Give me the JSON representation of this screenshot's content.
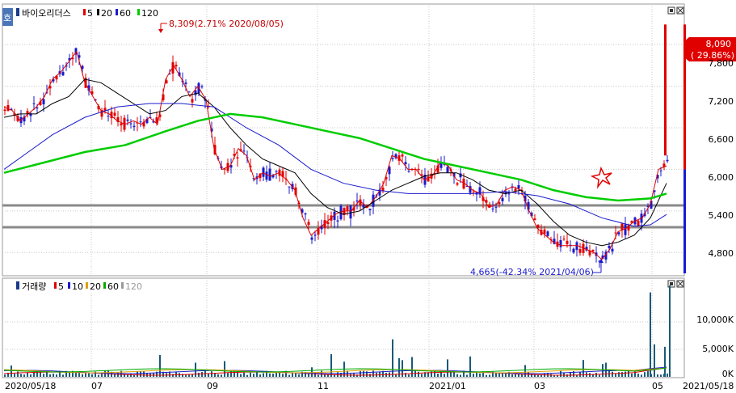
{
  "price_panel": {
    "legend": {
      "name": "바이오리더스",
      "ma_labels": [
        "5",
        "20",
        "60",
        "120"
      ],
      "ma_colors": [
        "#e00000",
        "#000000",
        "#1a1acc",
        "#00cc00"
      ]
    },
    "tab_label": "호",
    "annotations": {
      "high": "8,309(2.71% 2020/08/05)",
      "low": "4,665(-42.34% 2021/04/06)"
    },
    "current_price": {
      "price": "8,090",
      "change": "( 29.86%)"
    },
    "y_ticks": [
      "7,800",
      "7,200",
      "6,600",
      "6,000",
      "5,400",
      "4,800"
    ]
  },
  "volume_panel": {
    "legend": {
      "name": "거래량",
      "ma_labels": [
        "5",
        "10",
        "20",
        "60",
        "120"
      ],
      "ma_colors": [
        "#e00000",
        "#1a1acc",
        "#e0a000",
        "#00aa00",
        "#999999"
      ]
    },
    "y_ticks": [
      "10,000K",
      "5,000K",
      "0K"
    ]
  },
  "x_axis": {
    "labels": [
      "2020/05/18",
      "07",
      "09",
      "11",
      "2021/01",
      "03",
      "05",
      "2021/05/18"
    ]
  },
  "chart_data": {
    "type": "candlestick",
    "title": "바이오리더스",
    "price_range": [
      4500,
      8300
    ],
    "volume_range": [
      0,
      15000000
    ],
    "horizontal_lines": [
      5580,
      5240
    ],
    "last_close": 8090,
    "series": [
      {
        "name": "5",
        "points": [
          [
            0,
            6900
          ],
          [
            10,
            6850
          ],
          [
            20,
            6700
          ],
          [
            30,
            6800
          ],
          [
            40,
            6900
          ],
          [
            50,
            7050
          ],
          [
            60,
            7300
          ],
          [
            70,
            7400
          ],
          [
            80,
            7550
          ],
          [
            90,
            7700
          ],
          [
            100,
            7250
          ],
          [
            110,
            7050
          ],
          [
            120,
            6850
          ],
          [
            130,
            6800
          ],
          [
            140,
            6700
          ],
          [
            150,
            6650
          ],
          [
            160,
            6700
          ],
          [
            170,
            6650
          ],
          [
            180,
            6750
          ],
          [
            190,
            6650
          ],
          [
            200,
            7300
          ],
          [
            210,
            7500
          ],
          [
            220,
            7300
          ],
          [
            230,
            7050
          ],
          [
            240,
            7200
          ],
          [
            250,
            7000
          ],
          [
            260,
            6300
          ],
          [
            270,
            6000
          ],
          [
            280,
            6050
          ],
          [
            290,
            6300
          ],
          [
            300,
            6200
          ],
          [
            310,
            5850
          ],
          [
            320,
            5950
          ],
          [
            330,
            5900
          ],
          [
            340,
            5950
          ],
          [
            350,
            5850
          ],
          [
            360,
            5700
          ],
          [
            370,
            5300
          ],
          [
            380,
            5050
          ],
          [
            390,
            5150
          ],
          [
            400,
            5250
          ],
          [
            410,
            5350
          ],
          [
            420,
            5400
          ],
          [
            430,
            5400
          ],
          [
            440,
            5550
          ],
          [
            450,
            5450
          ],
          [
            460,
            5600
          ],
          [
            470,
            5800
          ],
          [
            480,
            6200
          ],
          [
            490,
            6150
          ],
          [
            500,
            6000
          ],
          [
            510,
            6000
          ],
          [
            520,
            5850
          ],
          [
            530,
            5900
          ],
          [
            540,
            6100
          ],
          [
            550,
            6050
          ],
          [
            560,
            5850
          ],
          [
            570,
            5800
          ],
          [
            580,
            5700
          ],
          [
            590,
            5650
          ],
          [
            600,
            5450
          ],
          [
            610,
            5500
          ],
          [
            620,
            5700
          ],
          [
            630,
            5750
          ],
          [
            640,
            5700
          ],
          [
            650,
            5400
          ],
          [
            660,
            5150
          ],
          [
            670,
            5050
          ],
          [
            680,
            4950
          ],
          [
            690,
            4900
          ],
          [
            700,
            4900
          ],
          [
            710,
            4900
          ],
          [
            720,
            4850
          ],
          [
            730,
            4800
          ],
          [
            740,
            4700
          ],
          [
            750,
            4850
          ],
          [
            760,
            5100
          ],
          [
            770,
            5150
          ],
          [
            780,
            5250
          ],
          [
            790,
            5300
          ],
          [
            800,
            5500
          ],
          [
            810,
            6000
          ],
          [
            820,
            6050
          ]
        ]
      },
      {
        "name": "20",
        "points": [
          [
            0,
            6750
          ],
          [
            20,
            6800
          ],
          [
            40,
            6800
          ],
          [
            60,
            6950
          ],
          [
            80,
            7050
          ],
          [
            100,
            7300
          ],
          [
            120,
            7250
          ],
          [
            140,
            7100
          ],
          [
            160,
            6950
          ],
          [
            180,
            6800
          ],
          [
            200,
            6850
          ],
          [
            220,
            7050
          ],
          [
            240,
            7100
          ],
          [
            260,
            6900
          ],
          [
            280,
            6600
          ],
          [
            300,
            6350
          ],
          [
            320,
            6150
          ],
          [
            340,
            6050
          ],
          [
            360,
            5950
          ],
          [
            380,
            5650
          ],
          [
            400,
            5450
          ],
          [
            420,
            5350
          ],
          [
            440,
            5400
          ],
          [
            460,
            5550
          ],
          [
            480,
            5700
          ],
          [
            500,
            5800
          ],
          [
            520,
            5900
          ],
          [
            540,
            5950
          ],
          [
            560,
            5950
          ],
          [
            580,
            5850
          ],
          [
            600,
            5700
          ],
          [
            620,
            5650
          ],
          [
            640,
            5700
          ],
          [
            660,
            5500
          ],
          [
            680,
            5250
          ],
          [
            700,
            5050
          ],
          [
            720,
            4950
          ],
          [
            740,
            4900
          ],
          [
            760,
            4950
          ],
          [
            780,
            5050
          ],
          [
            800,
            5300
          ],
          [
            820,
            5800
          ]
        ]
      },
      {
        "name": "60",
        "points": [
          [
            0,
            6000
          ],
          [
            30,
            6250
          ],
          [
            60,
            6500
          ],
          [
            100,
            6750
          ],
          [
            140,
            6900
          ],
          [
            180,
            6950
          ],
          [
            220,
            6950
          ],
          [
            260,
            6900
          ],
          [
            300,
            6600
          ],
          [
            340,
            6350
          ],
          [
            380,
            6000
          ],
          [
            420,
            5800
          ],
          [
            460,
            5700
          ],
          [
            500,
            5650
          ],
          [
            540,
            5650
          ],
          [
            580,
            5650
          ],
          [
            620,
            5680
          ],
          [
            660,
            5620
          ],
          [
            700,
            5500
          ],
          [
            740,
            5300
          ],
          [
            780,
            5180
          ],
          [
            800,
            5200
          ],
          [
            820,
            5350
          ]
        ]
      },
      {
        "name": "120",
        "points": [
          [
            0,
            5950
          ],
          [
            50,
            6100
          ],
          [
            100,
            6250
          ],
          [
            150,
            6350
          ],
          [
            200,
            6550
          ],
          [
            240,
            6700
          ],
          [
            280,
            6800
          ],
          [
            320,
            6750
          ],
          [
            360,
            6650
          ],
          [
            400,
            6550
          ],
          [
            440,
            6450
          ],
          [
            480,
            6300
          ],
          [
            520,
            6150
          ],
          [
            560,
            6050
          ],
          [
            600,
            5950
          ],
          [
            640,
            5850
          ],
          [
            680,
            5700
          ],
          [
            720,
            5600
          ],
          [
            760,
            5550
          ],
          [
            800,
            5580
          ],
          [
            820,
            5650
          ]
        ]
      }
    ]
  }
}
